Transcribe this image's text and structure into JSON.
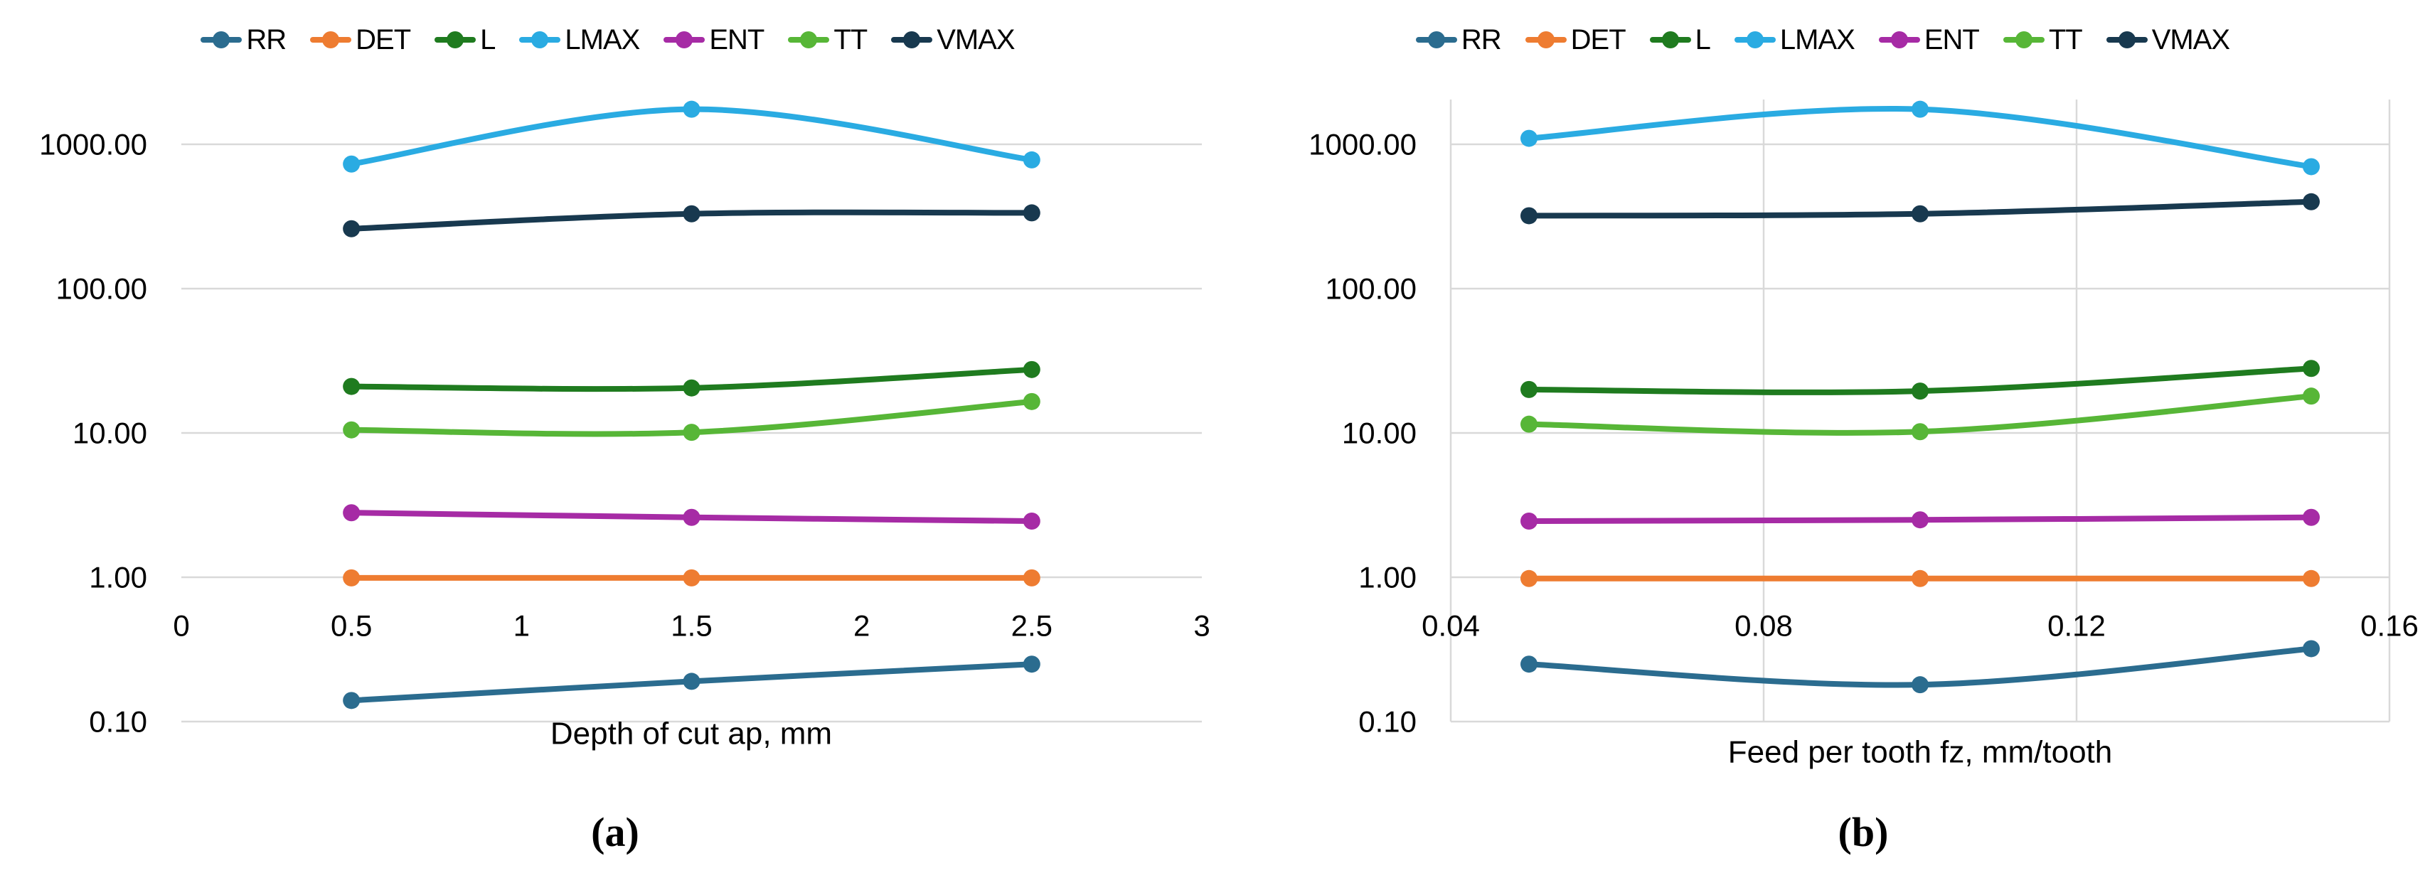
{
  "figure": {
    "background": "#ffffff",
    "text_color": "#000000",
    "gridline_color": "#d9d9d9"
  },
  "chart_data": [
    {
      "type": "line",
      "subplot_label": "(a)",
      "xlabel": "Depth of cut ap, mm",
      "ylabel": "",
      "y_scale": "log",
      "grid": "horizontal",
      "legend_position": "top",
      "xlim": [
        0,
        3
      ],
      "ylim": [
        0.1,
        2100
      ],
      "x_ticks": [
        0,
        0.5,
        1,
        1.5,
        2,
        2.5,
        3
      ],
      "x_tick_labels": [
        "0",
        "0.5",
        "1",
        "1.5",
        "2",
        "2.5",
        "3"
      ],
      "y_ticks": [
        1000,
        100,
        10,
        1,
        0.1
      ],
      "y_tick_labels": [
        "1000.00",
        "100.00",
        "10.00",
        "1.00",
        "0.10"
      ],
      "x": [
        0.5,
        1.5,
        2.5
      ],
      "series": [
        {
          "name": "RR",
          "color": "#2b6c8f",
          "values": [
            0.14,
            0.19,
            0.25
          ]
        },
        {
          "name": "DET",
          "color": "#ee7c31",
          "values": [
            0.99,
            0.99,
            0.99
          ]
        },
        {
          "name": "L",
          "color": "#1f7b1f",
          "values": [
            21,
            20.5,
            27.5
          ]
        },
        {
          "name": "LMAX",
          "color": "#2aabe2",
          "values": [
            730,
            1750,
            780
          ]
        },
        {
          "name": "ENT",
          "color": "#a62ba5",
          "values": [
            2.8,
            2.6,
            2.45
          ]
        },
        {
          "name": "TT",
          "color": "#57b637",
          "values": [
            10.5,
            10.1,
            16.5
          ]
        },
        {
          "name": "VMAX",
          "color": "#18394f",
          "values": [
            260,
            330,
            335
          ]
        }
      ]
    },
    {
      "type": "line",
      "subplot_label": "(b)",
      "xlabel": "Feed per tooth fz, mm/tooth",
      "ylabel": "",
      "y_scale": "log",
      "grid": "both",
      "legend_position": "top",
      "xlim": [
        0.04,
        0.16
      ],
      "ylim": [
        0.1,
        2100
      ],
      "x_ticks": [
        0.04,
        0.08,
        0.12,
        0.16
      ],
      "x_tick_labels": [
        "0.04",
        "0.08",
        "0.12",
        "0.16"
      ],
      "y_ticks": [
        1000,
        100,
        10,
        1,
        0.1
      ],
      "y_tick_labels": [
        "1000.00",
        "100.00",
        "10.00",
        "1.00",
        "0.10"
      ],
      "x": [
        0.05,
        0.1,
        0.15
      ],
      "series": [
        {
          "name": "RR",
          "color": "#2b6c8f",
          "values": [
            0.25,
            0.18,
            0.32
          ]
        },
        {
          "name": "DET",
          "color": "#ee7c31",
          "values": [
            0.98,
            0.98,
            0.98
          ]
        },
        {
          "name": "L",
          "color": "#1f7b1f",
          "values": [
            20,
            19.5,
            28
          ]
        },
        {
          "name": "LMAX",
          "color": "#2aabe2",
          "values": [
            1100,
            1750,
            700
          ]
        },
        {
          "name": "ENT",
          "color": "#a62ba5",
          "values": [
            2.45,
            2.5,
            2.6
          ]
        },
        {
          "name": "TT",
          "color": "#57b637",
          "values": [
            11.5,
            10.2,
            18
          ]
        },
        {
          "name": "VMAX",
          "color": "#18394f",
          "values": [
            320,
            330,
            400
          ]
        }
      ]
    }
  ]
}
